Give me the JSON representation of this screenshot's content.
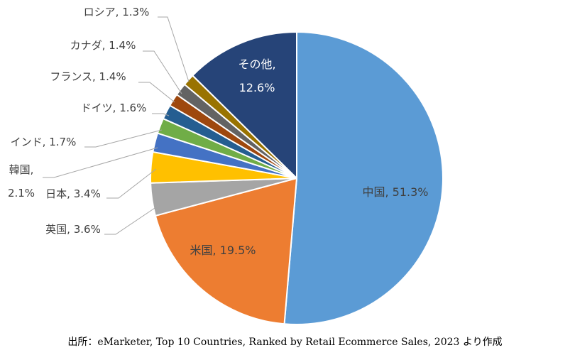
{
  "chart_data": {
    "type": "pie",
    "title": "",
    "series": [
      {
        "name": "中国",
        "value": 51.3,
        "label": "中国, 51.3%",
        "color": "#5b9bd5"
      },
      {
        "name": "米国",
        "value": 19.5,
        "label": "米国, 19.5%",
        "color": "#ed7d31"
      },
      {
        "name": "英国",
        "value": 3.6,
        "label": "英国, 3.6%",
        "color": "#a5a5a5"
      },
      {
        "name": "日本",
        "value": 3.4,
        "label": "日本, 3.4%",
        "color": "#ffc000"
      },
      {
        "name": "韓国",
        "value": 2.1,
        "label": "韓国,",
        "label2": "2.1%",
        "color": "#4472c4"
      },
      {
        "name": "インド",
        "value": 1.7,
        "label": "インド, 1.7%",
        "color": "#70ad47"
      },
      {
        "name": "ドイツ",
        "value": 1.6,
        "label": "ドイツ, 1.6%",
        "color": "#255e91"
      },
      {
        "name": "フランス",
        "value": 1.4,
        "label": "フランス, 1.4%",
        "color": "#9e480e"
      },
      {
        "name": "カナダ",
        "value": 1.4,
        "label": "カナダ, 1.4%",
        "color": "#636363"
      },
      {
        "name": "ロシア",
        "value": 1.3,
        "label": "ロシア, 1.3%",
        "color": "#997300"
      },
      {
        "name": "その他",
        "value": 12.6,
        "label": "その他,",
        "label2": "12.6%",
        "color": "#264478"
      }
    ],
    "source": "出所：eMarketer, Top 10 Countries, Ranked by Retail Ecommerce Sales, 2023 より作成"
  }
}
